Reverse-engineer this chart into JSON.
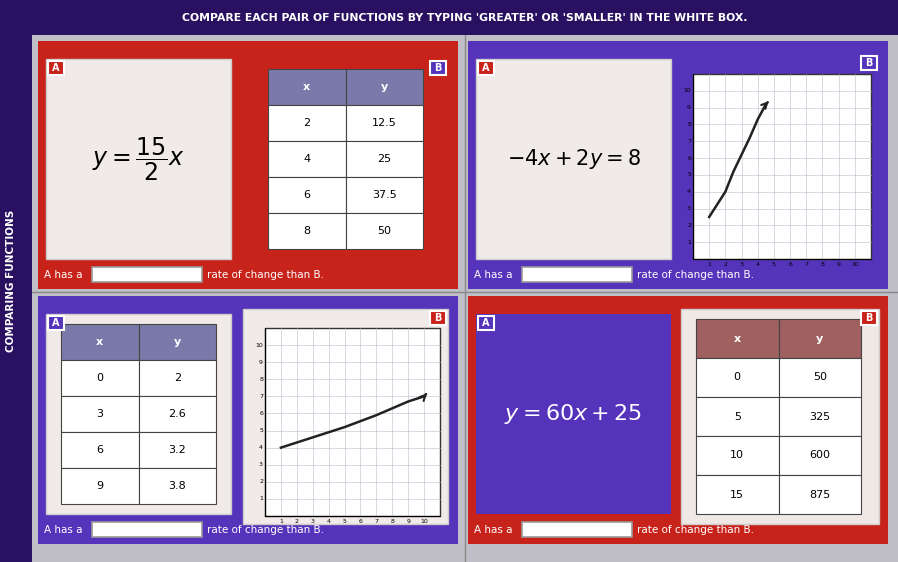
{
  "bg_color": "#c0bfc8",
  "sidebar_color": "#2a1060",
  "title_bar_color": "#2a1060",
  "title_text": "COMPARE EACH PAIR OF FUNCTIONS BY TYPING 'GREATER' OR 'SMALLER' IN THE WHITE BOX.",
  "sidebar_label": "COMPARING FUNCTIONS",
  "RED": "#c8231a",
  "PURPLE": "#5533bb",
  "DARK_PURPLE": "#2a1060",
  "table_header": "#7a7aaa",
  "panels": {
    "top_left": {
      "outer": "RED",
      "A_bg": "#f0ebe8",
      "A_text": "$y = \\dfrac{15}{2}x$",
      "A_text_color": "#000000",
      "B_bg": "RED",
      "B_table_header": "#7a7aaa",
      "B_rows": [
        [
          "2",
          "12.5"
        ],
        [
          "4",
          "25"
        ],
        [
          "6",
          "37.5"
        ],
        [
          "8",
          "50"
        ]
      ]
    },
    "top_right": {
      "outer": "PURPLE",
      "A_bg": "#f0ebe8",
      "A_text": "$-4x + 2y = 8$",
      "A_text_color": "#000000",
      "B_bg": "PURPLE",
      "B_graph": true,
      "B_graph_line": [
        [
          1,
          3
        ],
        [
          2,
          4.5
        ],
        [
          3,
          5.9
        ],
        [
          4,
          7.3
        ],
        [
          4.5,
          8.5
        ]
      ]
    },
    "bottom_left": {
      "outer": "PURPLE",
      "A_bg": "PURPLE",
      "A_table_header": "#7a7aaa",
      "A_rows": [
        [
          "0",
          "2"
        ],
        [
          "3",
          "2.6"
        ],
        [
          "6",
          "3.2"
        ],
        [
          "9",
          "3.8"
        ]
      ],
      "B_bg": "PURPLE",
      "B_graph": true,
      "B_graph_line": [
        [
          1,
          4.2
        ],
        [
          3,
          4.6
        ],
        [
          5,
          5.2
        ],
        [
          7,
          5.8
        ],
        [
          9,
          6.6
        ],
        [
          10,
          6.9
        ]
      ]
    },
    "bottom_right": {
      "outer": "RED",
      "A_bg": "PURPLE",
      "A_text": "$y = 60x + 25$",
      "A_text_color": "#ffffff",
      "B_bg": "#f0ebe8",
      "B_table_header": "#a06060",
      "B_rows": [
        [
          "0",
          "50"
        ],
        [
          "5",
          "325"
        ],
        [
          "10",
          "600"
        ],
        [
          "15",
          "875"
        ]
      ]
    }
  }
}
